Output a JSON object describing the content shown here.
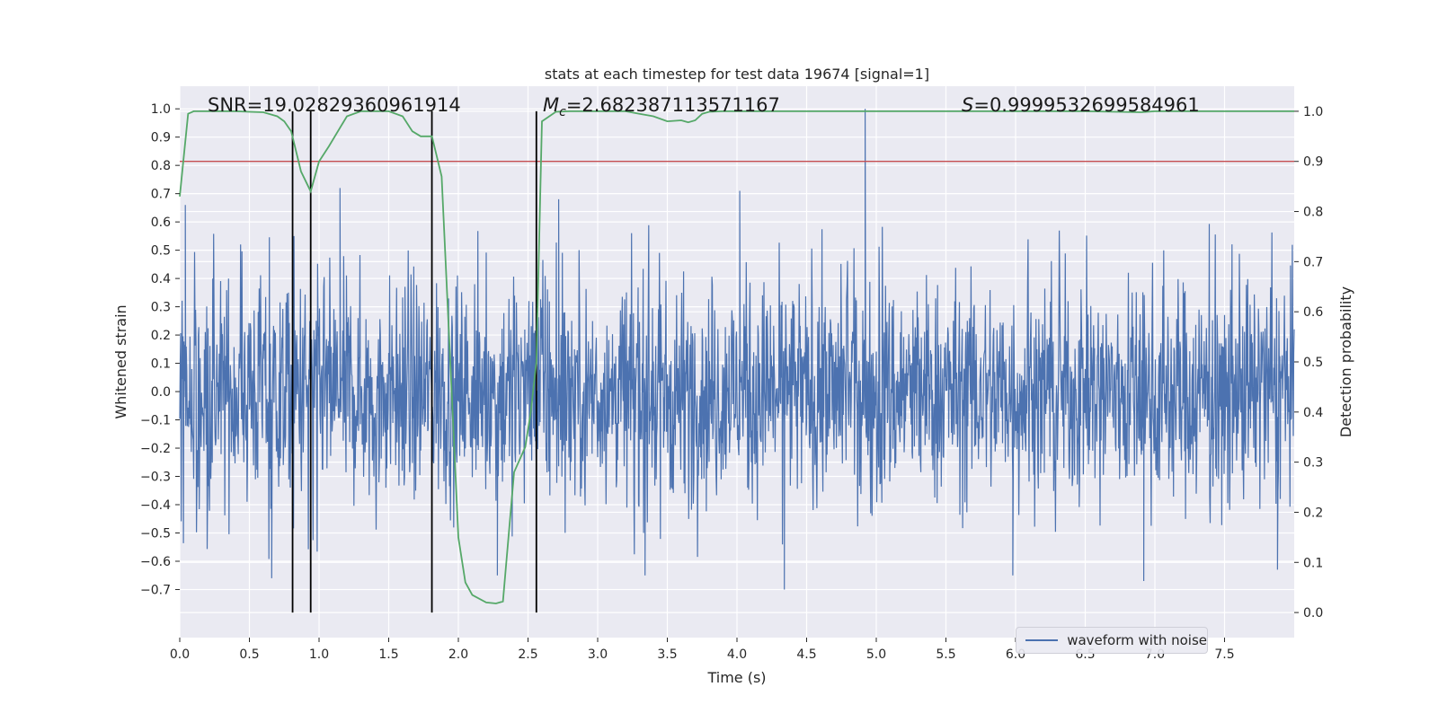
{
  "chart_data": {
    "type": "line",
    "title": "stats at each timestep for test data 19674 [signal=1]",
    "xlabel": "Time (s)",
    "ylabel_left": "Whitened strain",
    "ylabel_right": "Detection probability",
    "xlim": [
      0.0,
      8.0
    ],
    "ylim_left": [
      -0.87,
      1.08
    ],
    "ylim_right": [
      -0.05,
      1.05
    ],
    "x_ticks": [
      "0.0",
      "0.5",
      "1.0",
      "1.5",
      "2.0",
      "2.5",
      "3.0",
      "3.5",
      "4.0",
      "4.5",
      "5.0",
      "5.5",
      "6.0",
      "6.5",
      "7.0",
      "7.5"
    ],
    "y_ticks_left": [
      "1.0",
      "0.9",
      "0.8",
      "0.7",
      "0.6",
      "0.5",
      "0.4",
      "0.3",
      "0.2",
      "0.1",
      "0.0",
      "−0.1",
      "−0.2",
      "−0.3",
      "−0.4",
      "−0.5",
      "−0.6",
      "−0.7"
    ],
    "y_ticks_right": [
      "1.0",
      "0.9",
      "0.8",
      "0.7",
      "0.6",
      "0.5",
      "0.4",
      "0.3",
      "0.2",
      "0.1",
      "0.0"
    ],
    "grid": true,
    "annotations": {
      "snr": "SNR=19.02829360961914",
      "mc_symbol": "M",
      "mc_subscript": "c",
      "mc_value": "=2.682387113571167",
      "s_symbol": "S",
      "s_value": "=0.9999532699584961"
    },
    "threshold_right": 0.9,
    "vertical_markers_x": [
      0.81,
      0.94,
      1.81,
      2.56
    ],
    "series": [
      {
        "name": "waveform with noise",
        "color": "#4c72b0",
        "axis": "left",
        "typical_amplitude": 0.35,
        "extreme_points": [
          {
            "x": 0.04,
            "y": 0.66
          },
          {
            "x": 0.66,
            "y": -0.66
          },
          {
            "x": 0.82,
            "y": 0.55
          },
          {
            "x": 1.15,
            "y": 0.72
          },
          {
            "x": 2.28,
            "y": -0.65
          },
          {
            "x": 2.72,
            "y": 0.68
          },
          {
            "x": 3.34,
            "y": -0.65
          },
          {
            "x": 4.02,
            "y": 0.71
          },
          {
            "x": 4.34,
            "y": -0.7
          },
          {
            "x": 4.92,
            "y": 1.0
          },
          {
            "x": 5.98,
            "y": -0.65
          },
          {
            "x": 6.92,
            "y": -0.67
          },
          {
            "x": 7.88,
            "y": -0.63
          }
        ]
      },
      {
        "name": "detection probability",
        "color": "#55a868",
        "axis": "right",
        "x": [
          0.0,
          0.06,
          0.1,
          0.2,
          0.3,
          0.4,
          0.5,
          0.6,
          0.7,
          0.75,
          0.8,
          0.87,
          0.94,
          1.0,
          1.07,
          1.2,
          1.3,
          1.4,
          1.5,
          1.6,
          1.67,
          1.73,
          1.81,
          1.88,
          1.95,
          2.0,
          2.05,
          2.1,
          2.2,
          2.27,
          2.32,
          2.4,
          2.48,
          2.52,
          2.56,
          2.6,
          2.7,
          2.8,
          2.9,
          3.0,
          3.1,
          3.2,
          3.3,
          3.4,
          3.5,
          3.6,
          3.65,
          3.7,
          3.75,
          3.8,
          3.9,
          4.0,
          4.5,
          5.0,
          5.5,
          6.0,
          6.5,
          6.9,
          7.0,
          7.5,
          8.0
        ],
        "values": [
          0.83,
          0.995,
          1.0,
          1.0,
          1.0,
          1.0,
          0.999,
          0.998,
          0.99,
          0.98,
          0.96,
          0.88,
          0.84,
          0.9,
          0.93,
          0.99,
          1.0,
          1.0,
          1.0,
          0.99,
          0.96,
          0.95,
          0.95,
          0.87,
          0.45,
          0.15,
          0.06,
          0.035,
          0.02,
          0.018,
          0.022,
          0.28,
          0.33,
          0.4,
          0.5,
          0.98,
          0.999,
          1.0,
          1.0,
          1.0,
          1.0,
          1.0,
          0.995,
          0.99,
          0.98,
          0.982,
          0.978,
          0.982,
          0.995,
          0.999,
          1.0,
          1.0,
          1.0,
          1.0,
          1.0,
          1.0,
          1.0,
          0.998,
          1.0,
          1.0,
          1.0
        ]
      }
    ]
  },
  "legend": {
    "label": "waveform with noise",
    "color": "#4c72b0"
  },
  "colors": {
    "plot_background": "#eaeaf2",
    "grid": "#ffffff",
    "threshold": "#c44e52",
    "markers": "#000000"
  }
}
